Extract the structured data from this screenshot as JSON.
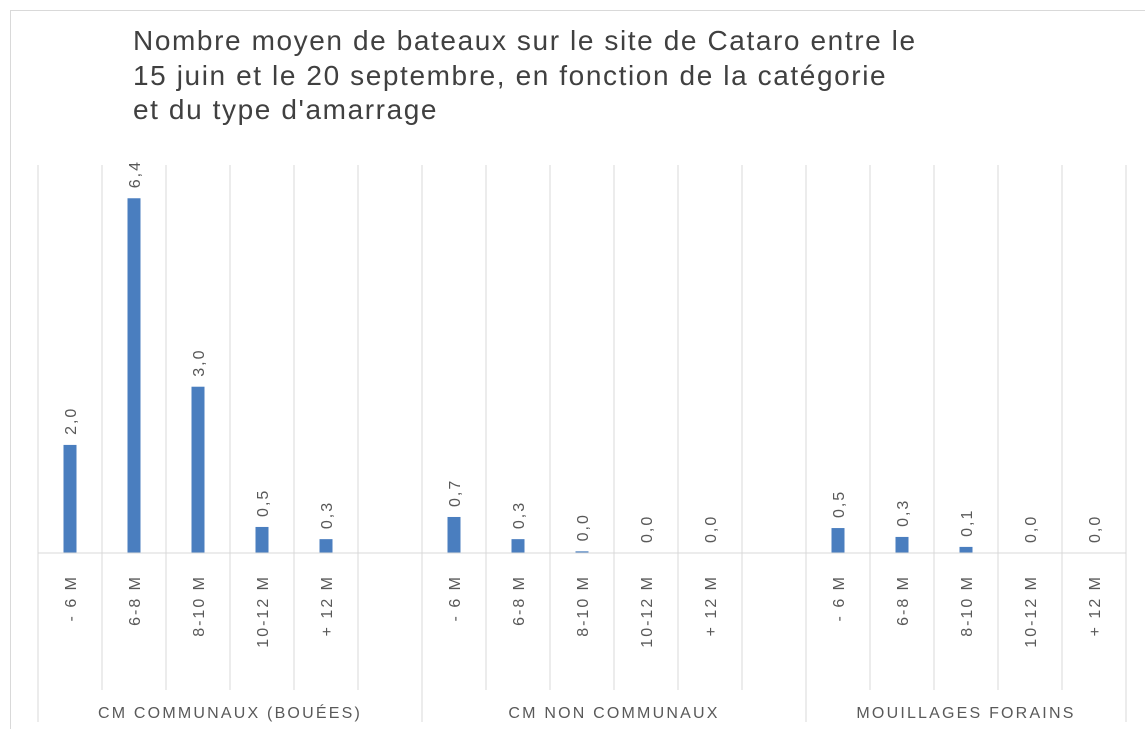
{
  "chart_data": {
    "type": "bar",
    "title": [
      "Nombre moyen de bateaux sur le site de Cataro entre le",
      "15 juin et le 20 septembre, en fonction de la catégorie",
      "et du type d'amarrage"
    ],
    "color": "#4a7ebf",
    "ylim": [
      0,
      7
    ],
    "groups": [
      {
        "name": "CM COMMUNAUX (BOUÉES)",
        "categories": [
          "- 6 M",
          "6-8 M",
          "8-10 M",
          "10-12 M",
          "+ 12 M",
          null
        ],
        "values": [
          1.95,
          6.4,
          3.0,
          0.47,
          0.25,
          null
        ],
        "value_labels": [
          "2,0",
          "6,4",
          "3,0",
          "0,5",
          "0,3",
          null
        ]
      },
      {
        "name": "CM NON COMMUNAUX",
        "categories": [
          "- 6 M",
          "6-8 M",
          "8-10 M",
          "10-12 M",
          "+ 12 M",
          null
        ],
        "values": [
          0.65,
          0.25,
          0.03,
          0,
          0,
          null
        ],
        "value_labels": [
          "0,7",
          "0,3",
          "0,0",
          "0,0",
          "0,0",
          null
        ]
      },
      {
        "name": "MOUILLAGES FORAINS",
        "categories": [
          "- 6 M",
          "6-8 M",
          "8-10 M",
          "10-12 M",
          "+ 12 M"
        ],
        "values": [
          0.45,
          0.29,
          0.11,
          0,
          0
        ],
        "value_labels": [
          "0,5",
          "0,3",
          "0,1",
          "0,0",
          "0,0"
        ]
      }
    ]
  }
}
